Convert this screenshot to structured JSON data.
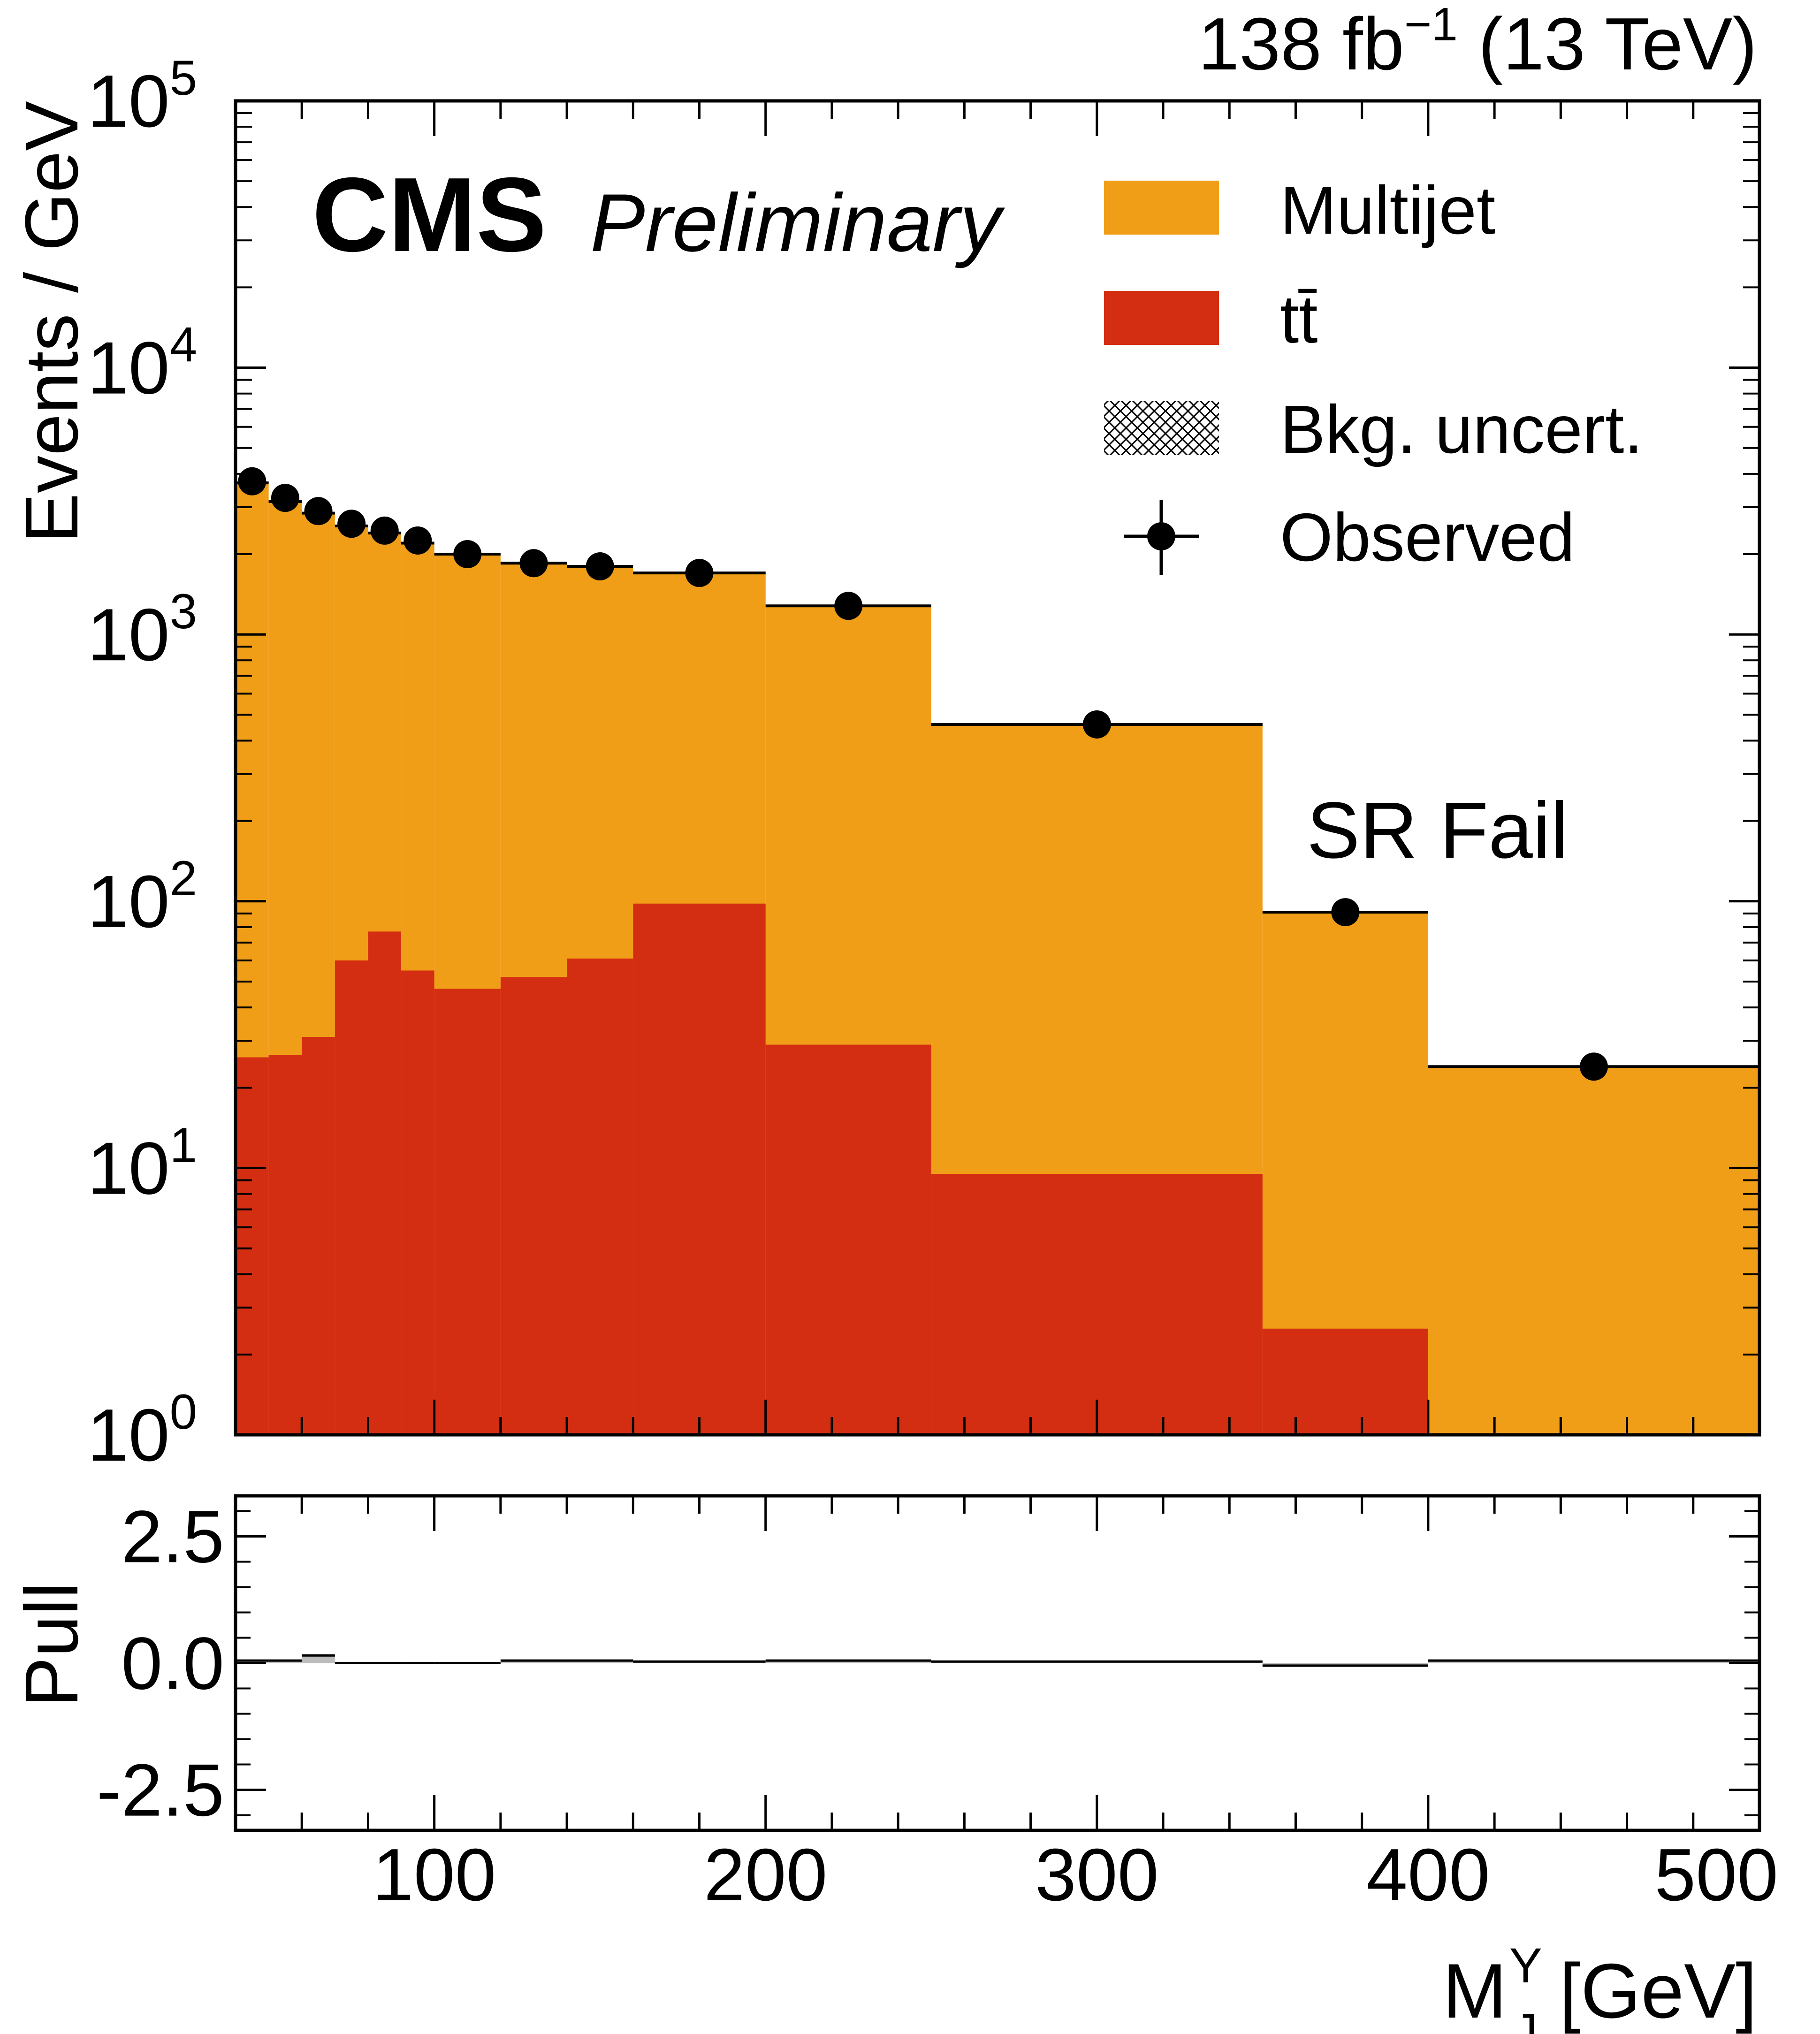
{
  "header": {
    "lumi_prefix": "138 fb",
    "lumi_exponent": "−1",
    "lumi_suffix": " (13 TeV)",
    "cms": "CMS",
    "preliminary": "Preliminary",
    "region": "SR Fail"
  },
  "colors": {
    "multijet": "#f09e17",
    "ttbar": "#d42e12",
    "observed": "#000000",
    "axis": "#000000"
  },
  "chart_data": [
    {
      "type": "area",
      "panel": "main",
      "xlabel_main": "M",
      "xlabel_sup": "Y",
      "xlabel_sub": "J",
      "xlabel_unit": " [GeV]",
      "ylabel": "Events / GeV",
      "xlim": [
        40,
        500
      ],
      "ylim": [
        1,
        100000
      ],
      "yscale": "log",
      "x_ticks": [
        100,
        200,
        300,
        400,
        500
      ],
      "y_ticks": [
        {
          "value": 1,
          "base": "10",
          "exp": "0"
        },
        {
          "value": 10,
          "base": "10",
          "exp": "1"
        },
        {
          "value": 100,
          "base": "10",
          "exp": "2"
        },
        {
          "value": 1000,
          "base": "10",
          "exp": "3"
        },
        {
          "value": 10000,
          "base": "10",
          "exp": "4"
        },
        {
          "value": 100000,
          "base": "10",
          "exp": "5"
        }
      ],
      "bin_edges": [
        40,
        50,
        60,
        70,
        80,
        90,
        100,
        120,
        140,
        160,
        200,
        250,
        350,
        400,
        500
      ],
      "series": [
        {
          "name": "Multijet",
          "stacked_total": [
            3700,
            3150,
            2850,
            2550,
            2400,
            2200,
            2000,
            1850,
            1800,
            1700,
            1280,
            460,
            91,
            24
          ]
        },
        {
          "name": "tt̄",
          "values": [
            26,
            26.5,
            31,
            60,
            77,
            55,
            47,
            52,
            61,
            98,
            29,
            9.5,
            2.5,
            0
          ]
        },
        {
          "name": "Bkg. uncert."
        },
        {
          "name": "Observed",
          "x": [
            45,
            55,
            65,
            75,
            85,
            95,
            110,
            130,
            150,
            180,
            225,
            300,
            375,
            450
          ],
          "y": [
            3750,
            3250,
            2900,
            2600,
            2450,
            2250,
            2000,
            1850,
            1800,
            1700,
            1280,
            460,
            91,
            24
          ]
        }
      ],
      "legend": {
        "placement": "top-right",
        "entries": [
          "Multijet",
          "tt̄",
          "Bkg. uncert.",
          "Observed"
        ]
      }
    },
    {
      "type": "bar",
      "panel": "pull",
      "ylabel": "Pull",
      "ylim": [
        -3.3,
        3.3
      ],
      "y_ticks": [
        "2.5",
        "0.0",
        "-2.5"
      ],
      "y_tick_values": [
        2.5,
        0.0,
        -2.5
      ],
      "bin_edges": [
        40,
        50,
        60,
        70,
        80,
        90,
        100,
        120,
        140,
        160,
        200,
        250,
        350,
        400,
        500
      ],
      "values": [
        0.05,
        0.05,
        0.15,
        0.0,
        0.0,
        0.0,
        0.0,
        0.05,
        0.05,
        0.03,
        0.05,
        0.03,
        -0.05,
        0.05
      ]
    }
  ]
}
